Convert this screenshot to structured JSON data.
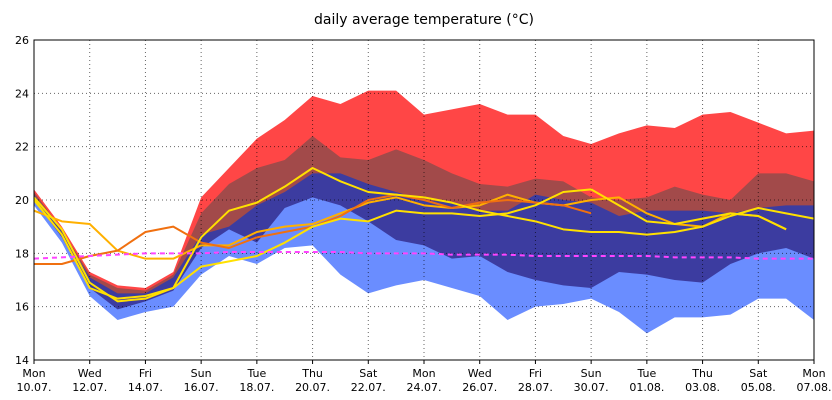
{
  "chart_data": {
    "type": "ensemble",
    "title": "daily average temperature (°C)",
    "categories": [
      [
        "Mon",
        "10.07."
      ],
      null,
      [
        "Wed",
        "12.07."
      ],
      null,
      [
        "Fri",
        "14.07."
      ],
      null,
      [
        "Sun",
        "16.07."
      ],
      null,
      [
        "Tue",
        "18.07."
      ],
      null,
      [
        "Thu",
        "20.07."
      ],
      null,
      [
        "Sat",
        "22.07."
      ],
      null,
      [
        "Mon",
        "24.07."
      ],
      null,
      [
        "Wed",
        "26.07."
      ],
      null,
      [
        "Fri",
        "28.07."
      ],
      null,
      [
        "Sun",
        "30.07."
      ],
      null,
      [
        "Tue",
        "01.08."
      ],
      null,
      [
        "Thu",
        "03.08."
      ],
      null,
      [
        "Sat",
        "05.08."
      ],
      null,
      [
        "Mon",
        "07.08."
      ]
    ],
    "ylim": [
      14,
      26
    ],
    "yticks": [
      14,
      16,
      18,
      20,
      22,
      24,
      26
    ],
    "grid": true,
    "bands": [
      {
        "color": "#ff4646",
        "values": [
          20.4,
          19.0,
          17.3,
          16.8,
          16.7,
          17.3,
          20.1,
          21.2,
          22.3,
          23.0,
          23.9,
          23.6,
          24.1,
          24.1,
          23.2,
          23.4,
          23.6,
          23.2,
          23.2,
          22.4,
          22.1,
          22.5,
          22.8,
          22.7,
          23.2,
          23.3,
          22.9,
          22.5,
          22.6
        ]
      },
      {
        "color": "#a24a4a",
        "values": [
          20.3,
          18.9,
          17.2,
          16.7,
          16.6,
          17.2,
          19.5,
          20.6,
          21.2,
          21.5,
          22.4,
          21.6,
          21.5,
          21.9,
          21.5,
          21.0,
          20.6,
          20.5,
          20.8,
          20.7,
          20.1,
          20.0,
          20.1,
          20.5,
          20.2,
          20.0,
          21.0,
          21.0,
          20.7
        ]
      },
      {
        "color": "#3c3ca0",
        "values": [
          20.2,
          18.8,
          17.1,
          16.5,
          16.5,
          17.1,
          18.7,
          19.0,
          19.8,
          20.3,
          21.0,
          21.0,
          20.6,
          20.3,
          20.0,
          19.9,
          19.6,
          19.6,
          20.2,
          20.0,
          19.9,
          19.4,
          19.6,
          19.6,
          19.6,
          19.5,
          19.7,
          19.8,
          19.8
        ]
      },
      {
        "color": "#6a8dff",
        "values": [
          20.0,
          18.6,
          16.7,
          15.9,
          16.2,
          16.6,
          18.2,
          18.9,
          18.4,
          19.7,
          20.1,
          19.8,
          19.2,
          18.5,
          18.3,
          17.8,
          17.9,
          17.3,
          17.0,
          16.8,
          16.7,
          17.3,
          17.2,
          17.0,
          16.9,
          17.6,
          18.0,
          18.2,
          17.8
        ]
      },
      {
        "color": "#ffffff",
        "values": [
          19.8,
          18.4,
          16.4,
          15.5,
          15.8,
          16.0,
          17.2,
          17.9,
          17.6,
          18.2,
          18.3,
          17.2,
          16.5,
          16.8,
          17.0,
          16.7,
          16.4,
          15.5,
          16.0,
          16.1,
          16.3,
          15.8,
          15.0,
          15.6,
          15.6,
          15.7,
          16.3,
          16.3,
          15.5
        ]
      }
    ],
    "series": [
      {
        "color": "#ffb000",
        "values": [
          19.6,
          19.2,
          19.1,
          18.1,
          17.8,
          17.8,
          18.3,
          18.3,
          18.8,
          19.0,
          19.1,
          19.5,
          19.9,
          20.1,
          19.8,
          19.7,
          19.8,
          20.2,
          19.9,
          19.8,
          20.0,
          20.1,
          19.5,
          19.1,
          19.0,
          19.5,
          19.4,
          18.9,
          null
        ]
      },
      {
        "color": "#f07010",
        "values": [
          17.6,
          17.6,
          17.9,
          18.1,
          18.8,
          19.0,
          18.4,
          18.2,
          18.6,
          18.8,
          19.0,
          19.4,
          20.0,
          20.2,
          20.0,
          19.7,
          19.9,
          20.0,
          19.9,
          19.8,
          19.5,
          null,
          null,
          null,
          null,
          null,
          null,
          null,
          null
        ]
      },
      {
        "color": "#ffe000",
        "values": [
          20.0,
          18.7,
          16.7,
          16.3,
          16.4,
          16.7,
          17.5,
          17.7,
          17.9,
          18.4,
          19.0,
          19.3,
          19.2,
          19.6,
          19.5,
          19.5,
          19.4,
          19.5,
          19.8,
          20.3,
          20.4,
          19.8,
          19.2,
          19.1,
          19.3,
          19.5,
          19.4,
          18.9,
          null
        ]
      },
      {
        "color": "#ffe000",
        "values": [
          20.1,
          18.9,
          16.9,
          16.2,
          16.3,
          16.7,
          18.6,
          19.6,
          19.9,
          20.5,
          21.2,
          20.7,
          20.3,
          20.2,
          20.1,
          19.9,
          19.6,
          19.4,
          19.2,
          18.9,
          18.8,
          18.8,
          18.7,
          18.8,
          19.0,
          19.4,
          19.7,
          19.5,
          19.3
        ]
      },
      {
        "color": "#ff44ff",
        "dashed": true,
        "values": [
          17.8,
          17.85,
          17.9,
          17.95,
          18.0,
          18.0,
          18.0,
          18.05,
          18.05,
          18.05,
          18.05,
          18.05,
          18.0,
          18.0,
          18.0,
          17.95,
          17.95,
          17.95,
          17.9,
          17.9,
          17.9,
          17.9,
          17.9,
          17.85,
          17.85,
          17.85,
          17.8,
          17.8,
          17.8
        ]
      }
    ]
  }
}
